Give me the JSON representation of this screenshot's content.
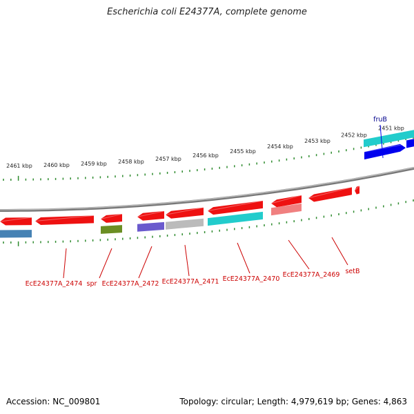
{
  "title": "Escherichia coli E24377A, complete genome",
  "footer": {
    "accession": "Accession: NC_009801",
    "topology": "Topology: circular; Length: 4,979,619 bp; Genes: 4,863"
  },
  "ruler": {
    "labels": [
      "2461 kbp",
      "2460 kbp",
      "2459 kbp",
      "2458 kbp",
      "2457 kbp",
      "2456 kbp",
      "2455 kbp",
      "2454 kbp",
      "2453 kbp",
      "2452 kbp",
      "2451 kbp"
    ]
  },
  "genes": {
    "top_labels": [
      "fruB"
    ],
    "bottom_labels": [
      "EcE24377A_2474",
      "spr",
      "EcE24377A_2472",
      "EcE24377A_2471",
      "EcE24377A_2470",
      "EcE24377A_2469",
      "setB"
    ]
  },
  "colors": {
    "gene_red": "#ee1111",
    "tick_green": "#2e8b2e",
    "backbone_gray": "#888888",
    "cyan": "#22cccc",
    "blue": "#0000ee",
    "steel_blue": "#4682b4",
    "olive": "#6b8e23",
    "slate_blue": "#6a5acd",
    "light_gray": "#bbbbbb",
    "pink": "#f08080",
    "label_red": "#cc0000",
    "label_blue": "#00008b"
  }
}
